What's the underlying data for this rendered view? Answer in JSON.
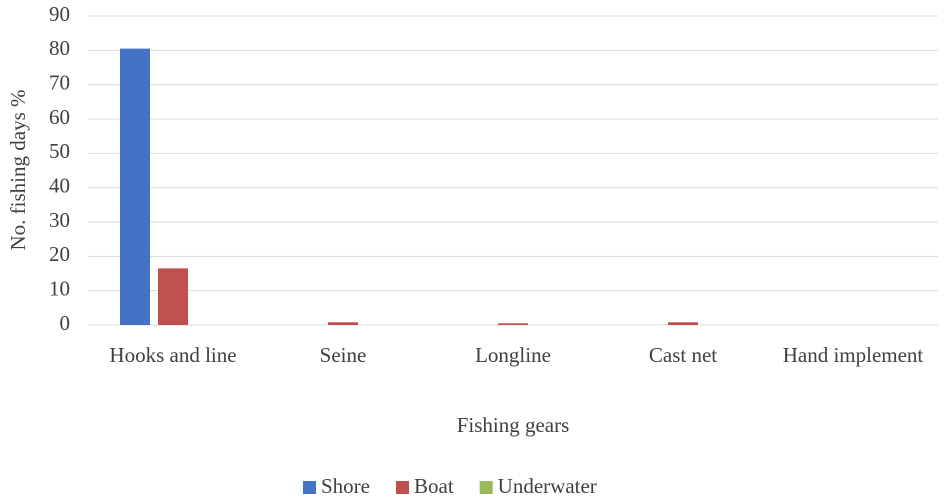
{
  "chart_data": {
    "type": "bar",
    "x_label": "Fishing gears",
    "y_label": "No. fishing days %",
    "categories": [
      "Hooks and line",
      "Seine",
      "Longline",
      "Cast net",
      "Hand implement"
    ],
    "series": [
      {
        "name": "Shore",
        "color": "#4472c4",
        "values": [
          80.5,
          0,
          0,
          0,
          0
        ]
      },
      {
        "name": "Boat",
        "color": "#c0504d",
        "values": [
          16.5,
          0.8,
          0.5,
          0.8,
          0
        ]
      },
      {
        "name": "Underwater",
        "color": "#9bbb59",
        "values": [
          0,
          0,
          0,
          0,
          0
        ]
      }
    ],
    "ylim": [
      0,
      90
    ],
    "yticks": [
      0,
      10,
      20,
      30,
      40,
      50,
      60,
      70,
      80,
      90
    ],
    "grid": true,
    "legend": "bottom"
  }
}
